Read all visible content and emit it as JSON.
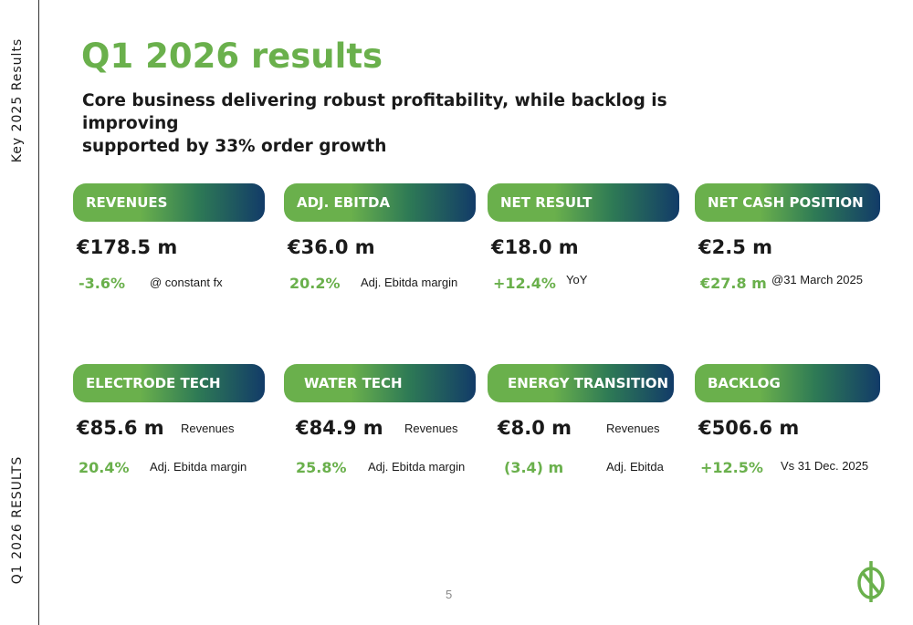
{
  "sidebar": {
    "top_text": "Key   2025 Results",
    "bottom_text": "Q1 2026 RESULTS"
  },
  "header": {
    "title": "Q1 2026 results",
    "subtitle_line1": "Core business delivering robust profitability, while backlog is improving",
    "subtitle_line2": "supported by 33% order growth"
  },
  "cards": [
    {
      "title": "REVENUES",
      "main": "€178.5 m",
      "main_label": "",
      "secondary": "-3.6%",
      "secondary_label": "@ constant fx"
    },
    {
      "title": "ADJ. EBITDA",
      "main": "€36.0 m",
      "main_label": "",
      "secondary": "20.2%",
      "secondary_label": "Adj. Ebitda margin"
    },
    {
      "title": "NET RESULT",
      "main": "€18.0 m",
      "main_label": "",
      "secondary": "+12.4%",
      "secondary_label": "YoY"
    },
    {
      "title": "NET CASH POSITION",
      "main": "€2.5 m",
      "main_label": "",
      "secondary": "€27.8 m",
      "secondary_label": "@31 March 2025"
    },
    {
      "title": "ELECTRODE TECH",
      "main": "€85.6 m",
      "main_label": "Revenues",
      "secondary": "20.4%",
      "secondary_label": "Adj. Ebitda margin"
    },
    {
      "title": "WATER TECH",
      "main": "€84.9 m",
      "main_label": "Revenues",
      "secondary": "25.8%",
      "secondary_label": "Adj. Ebitda margin"
    },
    {
      "title": "ENERGY TRANSITION",
      "main": "€8.0 m",
      "main_label": "Revenues",
      "secondary": "(3.4) m",
      "secondary_label": "Adj. Ebitda"
    },
    {
      "title": "BACKLOG",
      "main": "€506.6 m",
      "main_label": "",
      "secondary": "+12.5%",
      "secondary_label": "Vs 31 Dec. 2025"
    }
  ],
  "footer": {
    "page_number": "5"
  },
  "colors": {
    "accent_green": "#6ab04c",
    "gradient_navy": "#123b68",
    "text_dark": "#1a1a1a"
  },
  "logo": {
    "icon": "company-logo-icon"
  }
}
